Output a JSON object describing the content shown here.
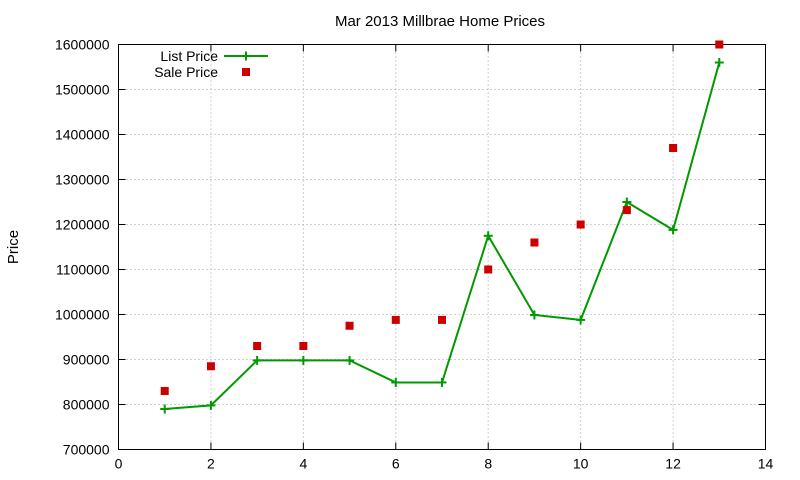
{
  "chart_data": {
    "type": "line",
    "title": "Mar 2013 Millbrae Home Prices",
    "xlabel": "",
    "ylabel": "Price",
    "xlim": [
      0,
      14
    ],
    "ylim": [
      700000,
      1600000
    ],
    "xticks": [
      0,
      2,
      4,
      6,
      8,
      10,
      12,
      14
    ],
    "yticks": [
      700000,
      800000,
      900000,
      1000000,
      1100000,
      1200000,
      1300000,
      1400000,
      1500000,
      1600000
    ],
    "x_tick_labels": [
      "0",
      "2",
      "4",
      "6",
      "8",
      "10",
      "12",
      "14"
    ],
    "y_tick_labels": [
      "700000",
      "800000",
      "900000",
      "1000000",
      "1100000",
      "1200000",
      "1300000",
      "1400000",
      "1500000",
      "1600000"
    ],
    "grid": true,
    "legend_position": "top-left",
    "x": [
      1,
      2,
      3,
      4,
      5,
      6,
      7,
      8,
      9,
      10,
      11,
      12,
      13
    ],
    "series": [
      {
        "name": "List Price",
        "style": "linespoints",
        "marker": "plus",
        "color": "#009900",
        "values": [
          790000,
          798000,
          898000,
          898000,
          898000,
          849000,
          849000,
          1175000,
          999000,
          988000,
          1250000,
          1188000,
          1560000
        ]
      },
      {
        "name": "Sale Price",
        "style": "points",
        "marker": "square",
        "color": "#cc0000",
        "values": [
          830000,
          885000,
          930000,
          930000,
          975000,
          988000,
          988000,
          1100000,
          1160000,
          1200000,
          1232000,
          1370000,
          1600000
        ]
      }
    ]
  }
}
